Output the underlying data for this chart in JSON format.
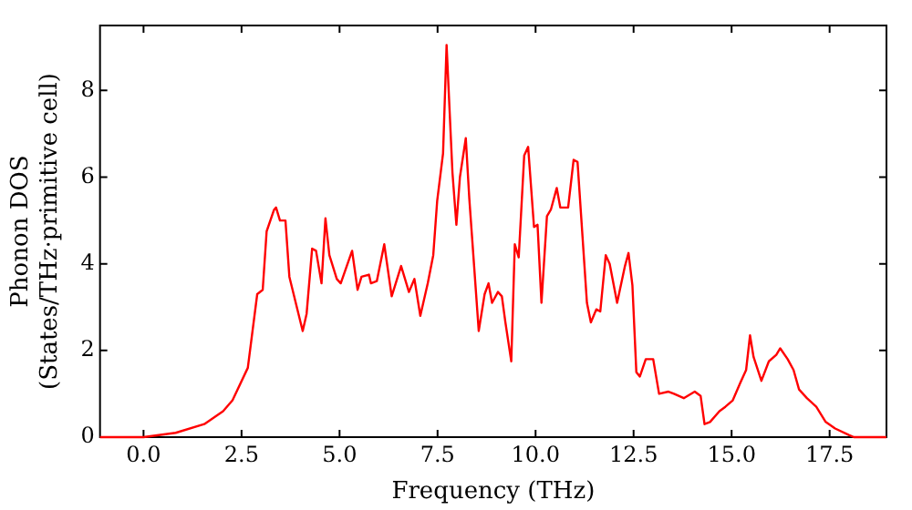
{
  "chart_data": {
    "type": "line",
    "xlabel": "Frequency (THz)",
    "ylabel": "Phonon DOS\n(States/THz·primitive cell)",
    "xlim": [
      -1.11,
      18.95
    ],
    "ylim": [
      0,
      9.5
    ],
    "xticks": [
      {
        "value": 0,
        "label": "0.0"
      },
      {
        "value": 2.5,
        "label": "2.5"
      },
      {
        "value": 5,
        "label": "5.0"
      },
      {
        "value": 7.5,
        "label": "7.5"
      },
      {
        "value": 10,
        "label": "10.0"
      },
      {
        "value": 12.5,
        "label": "12.5"
      },
      {
        "value": 15,
        "label": "15.0"
      },
      {
        "value": 17.5,
        "label": "17.5"
      }
    ],
    "yticks": [
      0,
      2,
      4,
      6,
      8
    ],
    "grid": false,
    "legend": false,
    "marker": "none",
    "line_style": "solid",
    "series": [
      {
        "color": "#ff0000",
        "x": [
          -1.11,
          0,
          0.82,
          1.55,
          2.03,
          2.27,
          2.66,
          2.9,
          3.04,
          3.14,
          3.33,
          3.38,
          3.48,
          3.62,
          3.72,
          4.06,
          4.16,
          4.3,
          4.4,
          4.54,
          4.64,
          4.74,
          4.93,
          5.03,
          5.32,
          5.46,
          5.56,
          5.75,
          5.8,
          5.95,
          6.14,
          6.33,
          6.57,
          6.77,
          6.91,
          7.06,
          7.25,
          7.39,
          7.49,
          7.64,
          7.73,
          7.88,
          7.98,
          8.07,
          8.22,
          8.31,
          8.55,
          8.7,
          8.8,
          8.89,
          9.04,
          9.14,
          9.23,
          9.38,
          9.47,
          9.57,
          9.71,
          9.81,
          9.96,
          10.05,
          10.15,
          10.29,
          10.39,
          10.54,
          10.63,
          10.83,
          10.97,
          11.07,
          11.31,
          11.41,
          11.55,
          11.65,
          11.79,
          11.89,
          12.08,
          12.28,
          12.37,
          12.47,
          12.57,
          12.66,
          12.81,
          13.0,
          13.15,
          13.39,
          13.53,
          13.78,
          14.06,
          14.21,
          14.31,
          14.45,
          14.69,
          14.84,
          15.03,
          15.22,
          15.37,
          15.47,
          15.56,
          15.76,
          15.95,
          16.14,
          16.24,
          16.43,
          16.58,
          16.72,
          16.92,
          17.16,
          17.4,
          17.64,
          17.99,
          18.12,
          18.95
        ],
        "values": [
          0,
          0,
          0.1,
          0.3,
          0.6,
          0.85,
          1.6,
          3.3,
          3.4,
          4.75,
          5.25,
          5.3,
          5.0,
          5.0,
          3.7,
          2.45,
          2.85,
          4.35,
          4.3,
          3.55,
          5.05,
          4.2,
          3.65,
          3.55,
          4.3,
          3.4,
          3.7,
          3.75,
          3.55,
          3.6,
          4.45,
          3.25,
          3.95,
          3.35,
          3.65,
          2.8,
          3.55,
          4.2,
          5.45,
          6.55,
          9.05,
          6.1,
          4.9,
          6.0,
          6.9,
          5.5,
          2.45,
          3.3,
          3.55,
          3.1,
          3.35,
          3.25,
          2.65,
          1.75,
          4.45,
          4.15,
          6.5,
          6.7,
          4.85,
          4.9,
          3.1,
          5.1,
          5.25,
          5.75,
          5.3,
          5.3,
          6.4,
          6.35,
          3.1,
          2.65,
          2.95,
          2.9,
          4.2,
          4.0,
          3.1,
          3.95,
          4.25,
          3.5,
          1.5,
          1.4,
          1.8,
          1.8,
          1.0,
          1.05,
          1.0,
          0.9,
          1.05,
          0.95,
          0.3,
          0.35,
          0.6,
          0.7,
          0.85,
          1.25,
          1.55,
          2.35,
          1.85,
          1.3,
          1.75,
          1.9,
          2.05,
          1.8,
          1.55,
          1.1,
          0.9,
          0.7,
          0.35,
          0.2,
          0.05,
          0,
          0
        ]
      }
    ]
  }
}
